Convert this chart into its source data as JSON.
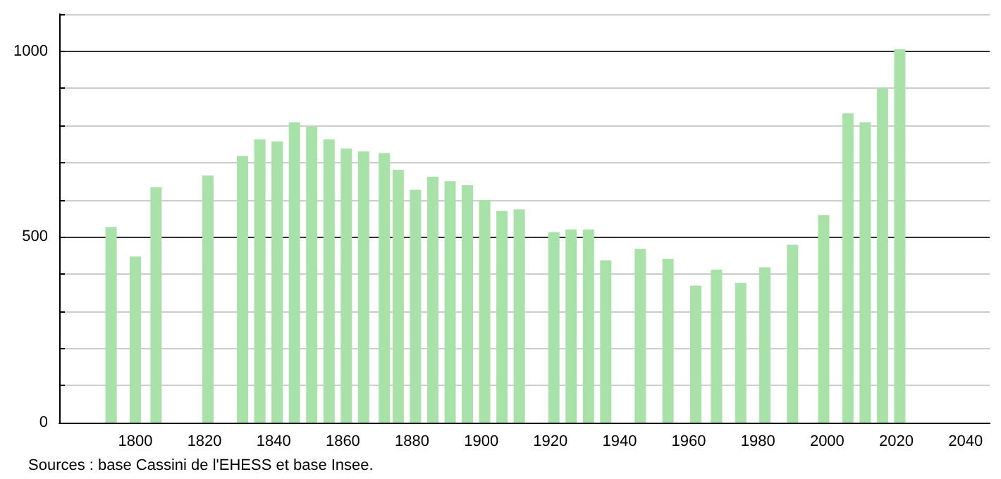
{
  "chart_data": {
    "type": "bar",
    "annotations": [
      "Sources : base Cassini de l'EHESS et base Insee."
    ],
    "x": [
      1793,
      1800,
      1806,
      1821,
      1831,
      1836,
      1841,
      1846,
      1851,
      1856,
      1861,
      1866,
      1872,
      1876,
      1881,
      1886,
      1891,
      1896,
      1901,
      1906,
      1911,
      1921,
      1926,
      1931,
      1936,
      1946,
      1954,
      1962,
      1968,
      1975,
      1982,
      1990,
      1999,
      2006,
      2011,
      2016,
      2021
    ],
    "values": [
      527,
      447,
      634,
      665,
      718,
      763,
      757,
      809,
      797,
      763,
      738,
      730,
      726,
      681,
      627,
      662,
      650,
      639,
      600,
      570,
      574,
      513,
      520,
      520,
      437,
      468,
      441,
      369,
      412,
      376,
      418,
      479,
      559,
      833,
      809,
      900,
      1005
    ],
    "color": "#a8e2a8",
    "xlim": [
      1778,
      2047
    ],
    "xticks": [
      1800,
      1820,
      1840,
      1860,
      1880,
      1900,
      1920,
      1940,
      1960,
      1980,
      2000,
      2020,
      2040
    ],
    "ylim": [
      0,
      1100
    ],
    "yticks": [
      0,
      {
        "value": 100,
        "label": null
      },
      {
        "value": 200,
        "label": null
      },
      {
        "value": 300,
        "label": null
      },
      {
        "value": 400,
        "label": null
      },
      500,
      {
        "value": 600,
        "label": null
      },
      {
        "value": 700,
        "label": null
      },
      {
        "value": 800,
        "label": null
      },
      {
        "value": 900,
        "label": null
      },
      1000,
      {
        "value": 1100,
        "label": null
      }
    ],
    "grid": "y"
  }
}
